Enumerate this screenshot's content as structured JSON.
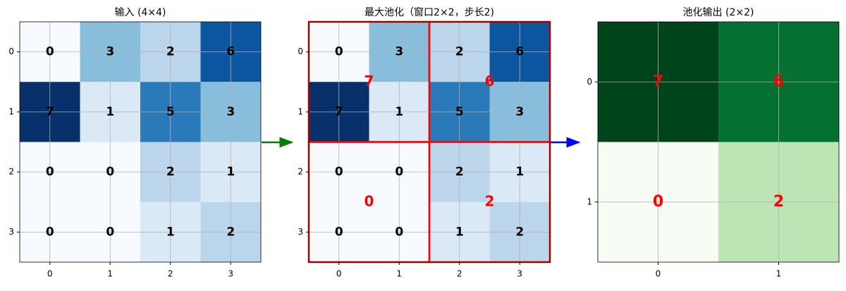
{
  "chart_data": [
    {
      "type": "heatmap",
      "title": "输入 (4×4)",
      "cmap": "Blues",
      "text_color": "black",
      "values": [
        [
          0,
          3,
          2,
          6
        ],
        [
          7,
          1,
          5,
          3
        ],
        [
          0,
          0,
          2,
          1
        ],
        [
          0,
          0,
          1,
          2
        ]
      ],
      "xlim": [
        -0.5,
        3.5
      ],
      "ylim": [
        3.5,
        -0.5
      ],
      "xticks": [
        0,
        1,
        2,
        3
      ],
      "yticks": [
        0,
        1,
        2,
        3
      ],
      "grid": true
    },
    {
      "type": "heatmap",
      "title": "最大池化（窗口2×2，步长2)",
      "cmap": "Blues",
      "text_color": "black",
      "values": [
        [
          0,
          3,
          2,
          6
        ],
        [
          7,
          1,
          5,
          3
        ],
        [
          0,
          0,
          2,
          1
        ],
        [
          0,
          0,
          1,
          2
        ]
      ],
      "pooled_values": [
        [
          7,
          6
        ],
        [
          0,
          2
        ]
      ],
      "pooled_color": "red",
      "xlim": [
        -0.5,
        3.5
      ],
      "ylim": [
        3.5,
        -0.5
      ],
      "xticks": [
        0,
        1,
        2,
        3
      ],
      "yticks": [
        0,
        1,
        2,
        3
      ],
      "grid": true
    },
    {
      "type": "heatmap",
      "title": "池化输出 (2×2)",
      "cmap": "Greens",
      "text_color": "red",
      "values": [
        [
          7,
          6
        ],
        [
          0,
          2
        ]
      ],
      "xlim": [
        -0.5,
        1.5
      ],
      "ylim": [
        1.5,
        -0.5
      ],
      "xticks": [
        0,
        1
      ],
      "yticks": [
        0,
        1
      ],
      "grid": true
    }
  ]
}
